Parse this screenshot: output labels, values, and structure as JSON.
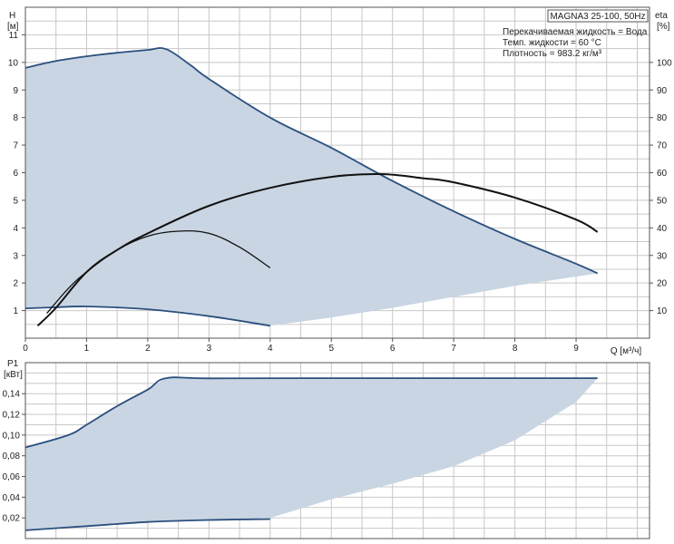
{
  "chart_data": [
    {
      "type": "line",
      "panel": "head-efficiency",
      "ylabel": "H",
      "yunit": "[м]",
      "y2label": "eta",
      "y2unit": "[%]",
      "xlabel": "Q [м³/ч]",
      "xlim": [
        0,
        10.2
      ],
      "ylim": [
        0,
        12
      ],
      "y2lim": [
        0,
        120
      ],
      "xticks": [
        "0",
        "1",
        "2",
        "3",
        "4",
        "5",
        "6",
        "7",
        "8",
        "9"
      ],
      "yticks": [
        "1",
        "2",
        "3",
        "4",
        "5",
        "6",
        "7",
        "8",
        "9",
        "10",
        "11"
      ],
      "y2ticks": [
        "10",
        "20",
        "30",
        "40",
        "50",
        "60",
        "70",
        "80",
        "90",
        "100"
      ],
      "grid": true,
      "info": {
        "model": "MAGNA3 25-100, 50Hz",
        "lines": [
          "Перекачиваемая жидкость = Вода",
          "Темп. жидкости = 60 °C",
          "Плотность = 983.2 кг/м³"
        ]
      },
      "area": {
        "upper": [
          [
            0,
            9.8
          ],
          [
            0.5,
            10.05
          ],
          [
            1,
            10.22
          ],
          [
            1.5,
            10.35
          ],
          [
            2.0,
            10.45
          ],
          [
            2.3,
            10.48
          ],
          [
            2.7,
            9.9
          ],
          [
            3,
            9.4
          ],
          [
            4,
            8.0
          ],
          [
            5,
            6.9
          ],
          [
            6,
            5.7
          ],
          [
            7,
            4.6
          ],
          [
            8,
            3.6
          ],
          [
            9,
            2.7
          ],
          [
            9.35,
            2.35
          ]
        ],
        "lower": [
          [
            9.35,
            2.35
          ],
          [
            8,
            1.9
          ],
          [
            7,
            1.5
          ],
          [
            6,
            1.1
          ],
          [
            5,
            0.75
          ],
          [
            4,
            0.45
          ],
          [
            3.5,
            0.65
          ],
          [
            3,
            0.8
          ],
          [
            2,
            1.05
          ],
          [
            1,
            1.15
          ],
          [
            0.5,
            1.12
          ],
          [
            0,
            1.08
          ]
        ]
      },
      "series": [
        {
          "key": "max_curve",
          "points": [
            [
              0,
              9.8
            ],
            [
              0.5,
              10.05
            ],
            [
              1,
              10.22
            ],
            [
              1.5,
              10.35
            ],
            [
              2.0,
              10.45
            ],
            [
              2.3,
              10.48
            ],
            [
              2.7,
              9.9
            ],
            [
              3,
              9.4
            ],
            [
              4,
              8.0
            ],
            [
              5,
              6.9
            ],
            [
              6,
              5.7
            ],
            [
              7,
              4.6
            ],
            [
              8,
              3.6
            ],
            [
              9,
              2.7
            ],
            [
              9.35,
              2.35
            ]
          ]
        },
        {
          "key": "min_curve",
          "points": [
            [
              0,
              1.08
            ],
            [
              0.5,
              1.12
            ],
            [
              1,
              1.15
            ],
            [
              2,
              1.05
            ],
            [
              3,
              0.8
            ],
            [
              4,
              0.45
            ]
          ]
        },
        {
          "key": "eta_max",
          "points": [
            [
              0.2,
              4.5
            ],
            [
              0.5,
              11
            ],
            [
              1,
              24
            ],
            [
              1.5,
              32
            ],
            [
              2,
              38
            ],
            [
              3,
              48
            ],
            [
              4,
              54.5
            ],
            [
              5,
              58.5
            ],
            [
              5.8,
              59.5
            ],
            [
              6.5,
              58
            ],
            [
              7,
              56.5
            ],
            [
              8,
              51
            ],
            [
              9,
              43
            ],
            [
              9.35,
              38.5
            ]
          ]
        },
        {
          "key": "eta_min",
          "points": [
            [
              0.35,
              9
            ],
            [
              0.7,
              18
            ],
            [
              1,
              24
            ],
            [
              1.5,
              32
            ],
            [
              2,
              37
            ],
            [
              2.5,
              38.8
            ],
            [
              3,
              38
            ],
            [
              3.5,
              33
            ],
            [
              4,
              25.5
            ]
          ]
        }
      ]
    },
    {
      "type": "line",
      "panel": "power",
      "ylabel": "P1",
      "yunit": "[кВт]",
      "xlim": [
        0,
        10.2
      ],
      "ylim": [
        0,
        0.17
      ],
      "yticks": [
        "0,02",
        "0,04",
        "0,06",
        "0,08",
        "0,10",
        "0,12",
        "0,14"
      ],
      "grid": true,
      "area": {
        "upper": [
          [
            0,
            0.088
          ],
          [
            0.7,
            0.1
          ],
          [
            1,
            0.11
          ],
          [
            2.3,
            0.155
          ],
          [
            3,
            0.155
          ],
          [
            5,
            0.155
          ],
          [
            7,
            0.155
          ],
          [
            9.35,
            0.155
          ]
        ],
        "lower": [
          [
            9.35,
            0.155
          ],
          [
            9,
            0.132
          ],
          [
            8,
            0.095
          ],
          [
            7,
            0.07
          ],
          [
            6,
            0.053
          ],
          [
            5,
            0.038
          ],
          [
            4,
            0.02
          ],
          [
            3.5,
            0.019
          ],
          [
            3,
            0.018
          ],
          [
            2,
            0.016
          ],
          [
            1,
            0.012
          ],
          [
            0,
            0.008
          ]
        ]
      },
      "series": [
        {
          "key": "p_max",
          "points": [
            [
              0,
              0.088
            ],
            [
              0.7,
              0.1
            ],
            [
              1,
              0.11
            ],
            [
              1.5,
              0.128
            ],
            [
              2.0,
              0.144
            ],
            [
              2.3,
              0.155
            ],
            [
              3,
              0.1548
            ],
            [
              5,
              0.155
            ],
            [
              7,
              0.155
            ],
            [
              9.35,
              0.155
            ]
          ]
        },
        {
          "key": "p_min",
          "points": [
            [
              0,
              0.008
            ],
            [
              1,
              0.012
            ],
            [
              2,
              0.016
            ],
            [
              3,
              0.018
            ],
            [
              4,
              0.0188
            ]
          ]
        }
      ]
    }
  ],
  "colors": {
    "fill": "#c9d5e2",
    "curve": "#2b4f7e",
    "eta": "#111111",
    "grid": "#c8c8c8"
  }
}
